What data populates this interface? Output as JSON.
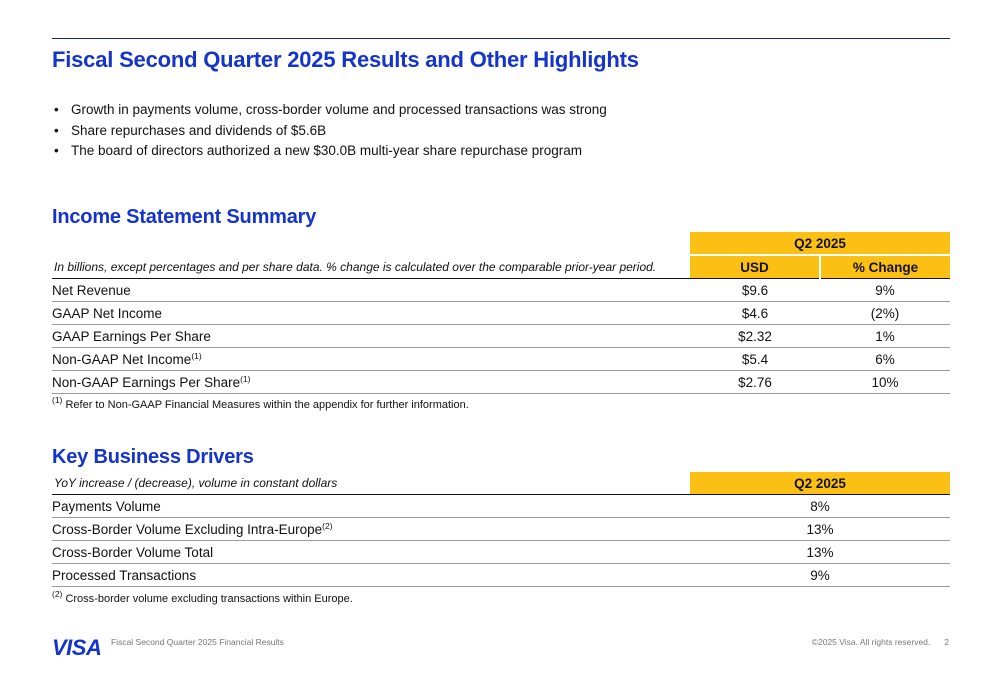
{
  "title": "Fiscal Second Quarter 2025 Results and Other Highlights",
  "highlights": [
    "Growth in payments volume, cross-border volume and processed transactions was strong",
    "Share repurchases and dividends of $5.6B",
    "The board of directors authorized a new $30.0B multi-year share repurchase program"
  ],
  "income": {
    "title": "Income Statement Summary",
    "group_header": "Q2 2025",
    "note": "In billions, except percentages and per share data. % change is calculated over the comparable prior-year period.",
    "col_usd": "USD",
    "col_change": "% Change",
    "rows": [
      {
        "label": "Net Revenue",
        "sup": "",
        "usd": "$9.6",
        "change": "9%"
      },
      {
        "label": "GAAP Net Income",
        "sup": "",
        "usd": "$4.6",
        "change": "(2%)"
      },
      {
        "label": "GAAP Earnings Per Share",
        "sup": "",
        "usd": "$2.32",
        "change": "1%"
      },
      {
        "label": "Non-GAAP Net Income",
        "sup": "(1)",
        "usd": "$5.4",
        "change": "6%"
      },
      {
        "label": "Non-GAAP Earnings Per Share",
        "sup": "(1)",
        "usd": "$2.76",
        "change": "10%"
      }
    ],
    "footnote_mark": "(1)",
    "footnote": "Refer to Non-GAAP Financial Measures within the appendix for further information."
  },
  "drivers": {
    "title": "Key Business Drivers",
    "note": "YoY increase / (decrease), volume in constant dollars",
    "col_header": "Q2 2025",
    "rows": [
      {
        "label": "Payments Volume",
        "sup": "",
        "value": "8%"
      },
      {
        "label": "Cross-Border Volume Excluding Intra-Europe",
        "sup": "(2)",
        "value": "13%"
      },
      {
        "label": "Cross-Border Volume Total",
        "sup": "",
        "value": "13%"
      },
      {
        "label": "Processed Transactions",
        "sup": "",
        "value": "9%"
      }
    ],
    "footnote_mark": "(2)",
    "footnote": "Cross-border volume excluding transactions within Europe."
  },
  "footer": {
    "logo": "VISA",
    "doc_title": "Fiscal Second Quarter 2025 Financial Results",
    "copyright": "©2025 Visa. All rights reserved.",
    "page": "2"
  },
  "colors": {
    "accent_blue": "#1434cb",
    "header_gold": "#fcc015"
  }
}
